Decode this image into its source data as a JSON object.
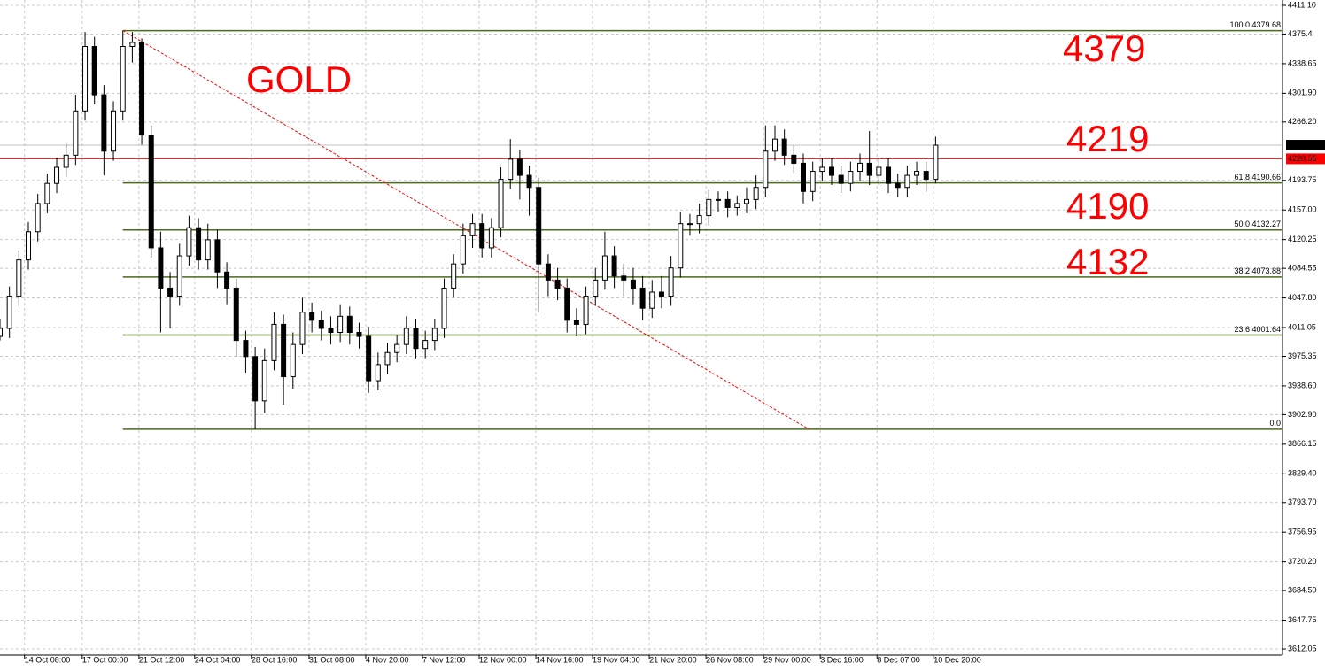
{
  "chart_data": {
    "type": "candlestick",
    "title": "GOLD",
    "open": [
      4000,
      4010,
      4050,
      4095,
      4130,
      4165,
      4190,
      4210,
      4225,
      4280,
      4360,
      4300,
      4230,
      4280,
      4360,
      4365,
      4250,
      4110,
      4060,
      4050,
      4100,
      4135,
      4095,
      4120,
      4080,
      4060,
      3995,
      3975,
      3920,
      3970,
      4015,
      3950,
      3990,
      4030,
      4020,
      4010,
      4005,
      4025,
      4005,
      4000,
      3945,
      3965,
      3980,
      3990,
      4010,
      3985,
      3995,
      4010,
      4060,
      4090,
      4125,
      4140,
      4110,
      4135,
      4195,
      4220,
      4200,
      4185,
      4090,
      4070,
      4060,
      4020,
      4015,
      4050,
      4070,
      4100,
      4075,
      4070,
      4060,
      4035,
      4055,
      4050,
      4085,
      4140,
      4140,
      4150,
      4170,
      4170,
      4160,
      4165,
      4170,
      4185,
      4230,
      4245,
      4225,
      4215,
      4180,
      4205,
      4210,
      4200,
      4190,
      4205,
      4215,
      4200,
      4210,
      4190,
      4185,
      4200,
      4205,
      4195
    ],
    "high": [
      4022,
      4062,
      4107,
      4142,
      4177,
      4202,
      4222,
      4240,
      4300,
      4378,
      4372,
      4312,
      4292,
      4379.68,
      4378,
      4370,
      4262,
      4130,
      4080,
      4115,
      4150,
      4147,
      4140,
      4132,
      4092,
      4072,
      4007,
      3987,
      3985,
      4030,
      4027,
      4005,
      4048,
      4042,
      4032,
      4025,
      4040,
      4037,
      4017,
      4012,
      3980,
      3992,
      4002,
      4025,
      4022,
      4007,
      4022,
      4072,
      4102,
      4140,
      4152,
      4152,
      4147,
      4210,
      4245,
      4232,
      4212,
      4197,
      4102,
      4085,
      4072,
      4035,
      4062,
      4085,
      4130,
      4112,
      4090,
      4085,
      4075,
      4070,
      4075,
      4100,
      4155,
      4152,
      4165,
      4182,
      4180,
      4180,
      4175,
      4185,
      4200,
      4262,
      4262,
      4257,
      4237,
      4227,
      4217,
      4222,
      4222,
      4212,
      4217,
      4227,
      4255,
      4222,
      4222,
      4202,
      4212,
      4217,
      4217,
      4248
    ],
    "low": [
      3995,
      3998,
      4038,
      4083,
      4118,
      4153,
      4178,
      4198,
      4213,
      4268,
      4288,
      4200,
      4218,
      4268,
      4340,
      4238,
      4098,
      4005,
      4010,
      4038,
      4088,
      4083,
      4083,
      4060,
      4040,
      3975,
      3955,
      3885,
      3905,
      3958,
      3915,
      3935,
      3978,
      4005,
      3995,
      3990,
      3993,
      3990,
      3985,
      3930,
      3933,
      3953,
      3968,
      3978,
      3973,
      3973,
      3983,
      3998,
      4048,
      4078,
      4110,
      4098,
      4098,
      4123,
      4183,
      4170,
      4150,
      4030,
      4050,
      4045,
      4005,
      4000,
      4003,
      4038,
      4058,
      4060,
      4050,
      4040,
      4020,
      4023,
      4035,
      4038,
      4073,
      4125,
      4128,
      4138,
      4155,
      4148,
      4150,
      4153,
      4158,
      4173,
      4218,
      4213,
      4203,
      4165,
      4168,
      4193,
      4188,
      4178,
      4180,
      4193,
      4188,
      4188,
      4178,
      4173,
      4173,
      4188,
      4180,
      4190
    ],
    "close": [
      4010,
      4050,
      4095,
      4130,
      4165,
      4190,
      4210,
      4225,
      4280,
      4360,
      4300,
      4230,
      4280,
      4360,
      4365,
      4250,
      4110,
      4060,
      4050,
      4100,
      4135,
      4095,
      4120,
      4080,
      4060,
      3995,
      3975,
      3920,
      3970,
      4015,
      3950,
      3990,
      4030,
      4020,
      4010,
      4005,
      4025,
      4005,
      4000,
      3945,
      3965,
      3980,
      3990,
      4010,
      3985,
      3995,
      4010,
      4060,
      4090,
      4125,
      4140,
      4110,
      4135,
      4195,
      4220,
      4200,
      4185,
      4090,
      4070,
      4060,
      4020,
      4015,
      4050,
      4070,
      4100,
      4075,
      4070,
      4060,
      4035,
      4055,
      4050,
      4085,
      4140,
      4140,
      4150,
      4170,
      4170,
      4160,
      4165,
      4170,
      4185,
      4230,
      4245,
      4225,
      4215,
      4180,
      4205,
      4210,
      4200,
      4190,
      4205,
      4215,
      4200,
      4210,
      4190,
      4185,
      4200,
      4205,
      4195,
      4237.42
    ],
    "up_color": "#ffffff",
    "down_color": "#000000",
    "wick_color": "#000000",
    "xlim": [
      0,
      135.7
    ],
    "xticks": [
      {
        "value": -0.3,
        "label": ":00"
      },
      {
        "value": 2.6,
        "label": "14 Oct 08:00"
      },
      {
        "value": 8.7,
        "label": "17 Oct 00:00"
      },
      {
        "value": 14.7,
        "label": "21 Oct 12:00"
      },
      {
        "value": 20.6,
        "label": "24 Oct 04:00"
      },
      {
        "value": 26.6,
        "label": "28 Oct 16:00"
      },
      {
        "value": 32.7,
        "label": "31 Oct 08:00"
      },
      {
        "value": 38.7,
        "label": "4 Nov 20:00"
      },
      {
        "value": 44.7,
        "label": "7 Nov 12:00"
      },
      {
        "value": 50.7,
        "label": "12 Nov 00:00"
      },
      {
        "value": 56.7,
        "label": "14 Nov 16:00"
      },
      {
        "value": 62.7,
        "label": "19 Nov 04:00"
      },
      {
        "value": 68.7,
        "label": "21 Nov 20:00"
      },
      {
        "value": 74.7,
        "label": "26 Nov 08:00"
      },
      {
        "value": 80.8,
        "label": "29 Nov 00:00"
      },
      {
        "value": 86.8,
        "label": "3 Dec 16:00"
      },
      {
        "value": 92.8,
        "label": "8 Dec 07:00"
      },
      {
        "value": 98.8,
        "label": "10 Dec 20:00"
      }
    ],
    "ylim": [
      3604.4,
      4417.7
    ],
    "yticks": [
      {
        "value": 4411.1,
        "label": "4411.10"
      },
      4375.4,
      4338.65,
      {
        "value": 4301.9,
        "label": "4301.90"
      },
      {
        "value": 4266.2,
        "label": "4266.20"
      },
      4193.75,
      {
        "value": 4157,
        "label": "4157.00"
      },
      4120.25,
      4084.55,
      {
        "value": 4047.8,
        "label": "4047.80"
      },
      4011.05,
      3975.35,
      {
        "value": 3938.6,
        "label": "3938.60"
      },
      {
        "value": 3902.9,
        "label": "3902.90"
      },
      3866.15,
      {
        "value": 3829.4,
        "label": "3829.40"
      },
      {
        "value": 3793.7,
        "label": "3793.70"
      },
      3756.95,
      {
        "value": 3720.2,
        "label": "3720.20"
      },
      {
        "value": 3684.5,
        "label": "3684.50"
      },
      3647.75,
      3612.05
    ],
    "grid": true,
    "fib_color": "#4b6b1e",
    "fib_levels": [
      {
        "label": "100.0 4379.68",
        "value": 4379.68
      },
      {
        "label": "61.8 4190.66",
        "value": 4190.66
      },
      {
        "label": "50.0 4132.27",
        "value": 4132.27
      },
      {
        "label": "38.2 4073.88",
        "value": 4073.88
      },
      {
        "label": "23.6 4001.64",
        "value": 4001.64
      },
      {
        "label": "0.0",
        "value": 3884.86
      }
    ],
    "fib_start": 13,
    "price_lines": [
      {
        "value": 4237.42,
        "color": "#c0c0c0",
        "box": "#000000"
      },
      {
        "value": 4220.55,
        "color": "#ff0000",
        "box": "#ff0000"
      }
    ],
    "trendline": {
      "x": [
        13,
        85.6
      ],
      "y": [
        4379.68,
        3884.86
      ],
      "color": "#ff0000"
    },
    "annotations": [
      "4379",
      "4219",
      "4190",
      "4132"
    ],
    "annotation_color": "#ff0000"
  }
}
